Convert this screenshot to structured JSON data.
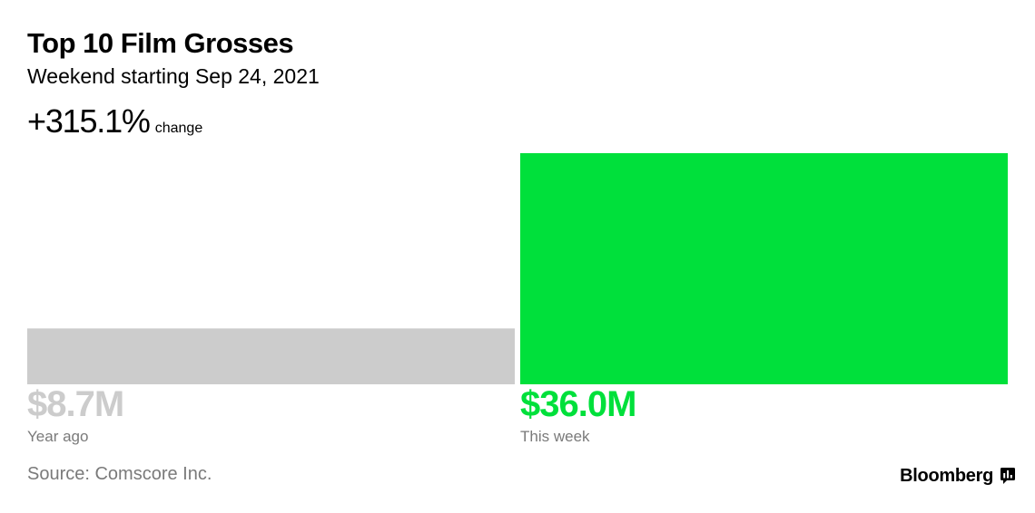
{
  "header": {
    "title": "Top 10 Film Grosses",
    "subtitle": "Weekend starting Sep 24, 2021",
    "change_value": "+315.1%",
    "change_unit": "change"
  },
  "chart_data": {
    "type": "bar",
    "orientation": "vertical",
    "title": "Top 10 Film Grosses",
    "subtitle": "Weekend starting Sep 24, 2021",
    "unit": "$M",
    "categories": [
      "Year ago",
      "This week"
    ],
    "values": [
      8.7,
      36.0
    ],
    "value_labels": [
      "$8.7M",
      "$36.0M"
    ],
    "ylim": [
      0,
      36.0
    ],
    "grid": false,
    "legend": "none",
    "colors": [
      "#cccccc",
      "#00e03b"
    ]
  },
  "footer": {
    "source": "Source: Comscore Inc.",
    "brand": "Bloomberg",
    "brand_icon": "bloomberg-chart-icon"
  }
}
